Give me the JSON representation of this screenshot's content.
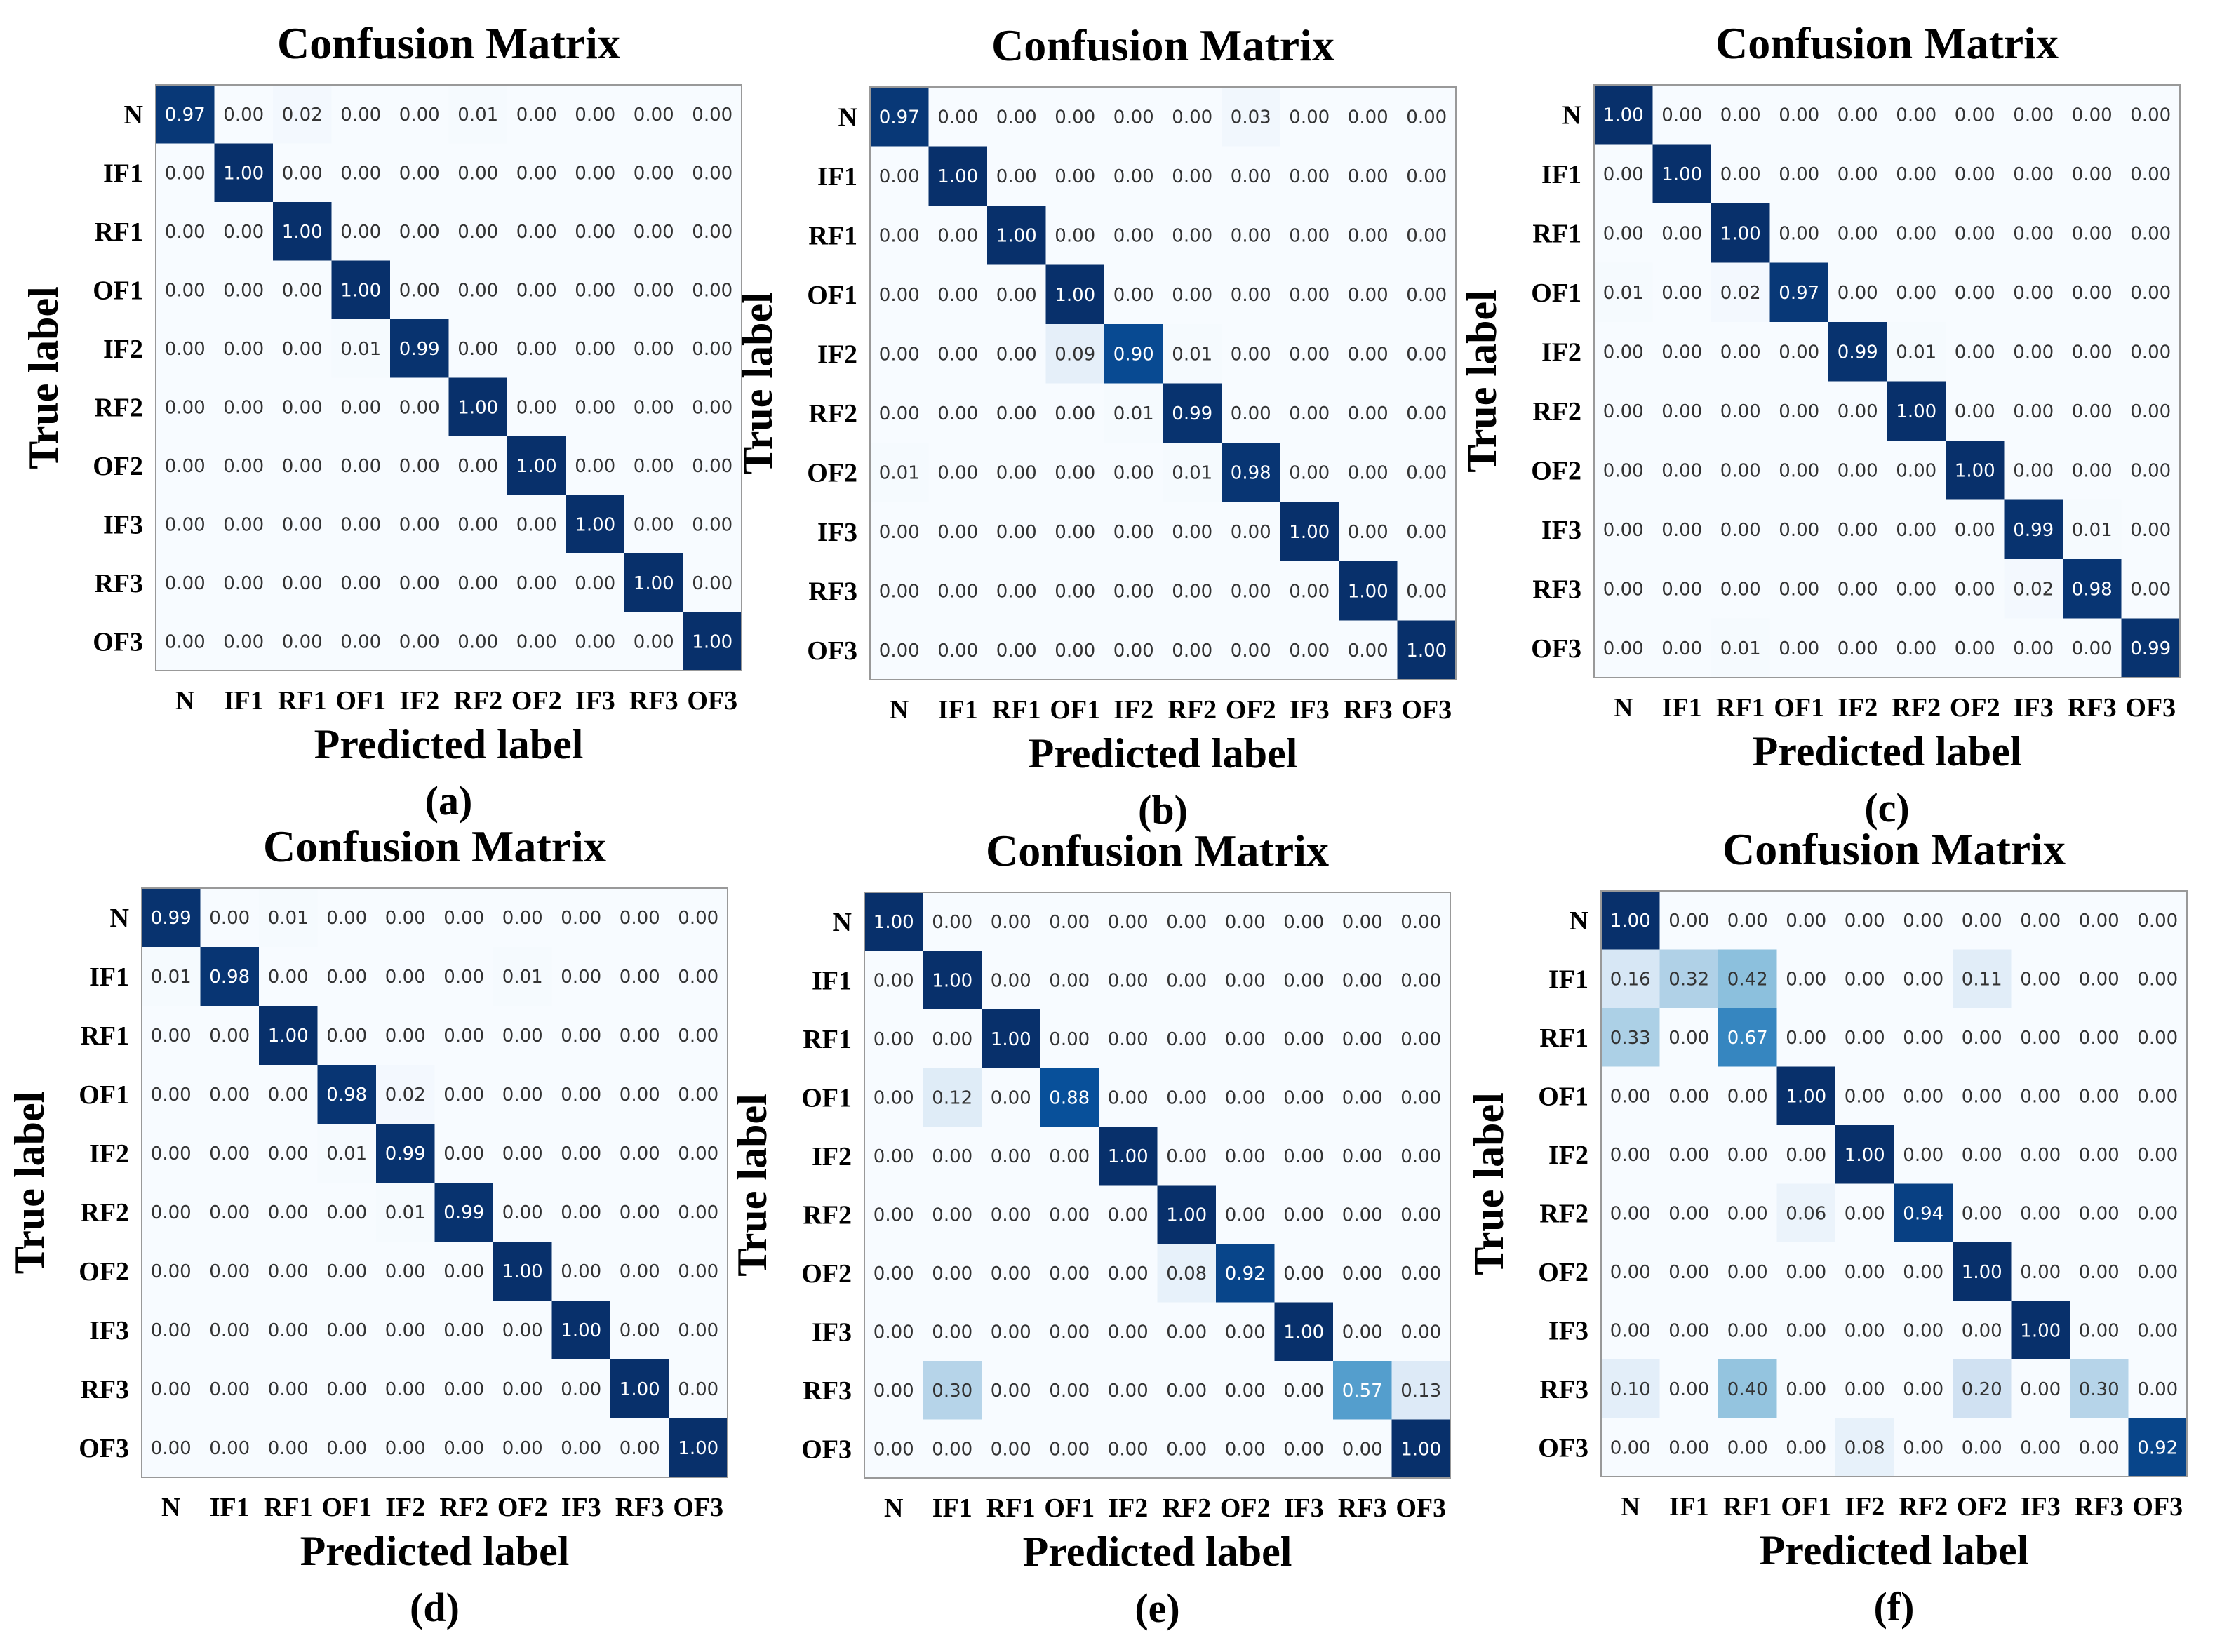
{
  "chart_data": [
    {
      "type": "heatmap",
      "title": "Confusion Matrix",
      "xlabel": "Predicted label",
      "ylabel": "True label",
      "panel_label": "(a)",
      "labels": [
        "N",
        "IF1",
        "RF1",
        "OF1",
        "IF2",
        "RF2",
        "OF2",
        "IF3",
        "RF3",
        "OF3"
      ],
      "values": [
        [
          "0.97",
          "0.00",
          "0.02",
          "0.00",
          "0.00",
          "0.01",
          "0.00",
          "0.00",
          "0.00",
          "0.00"
        ],
        [
          "0.00",
          "1.00",
          "0.00",
          "0.00",
          "0.00",
          "0.00",
          "0.00",
          "0.00",
          "0.00",
          "0.00"
        ],
        [
          "0.00",
          "0.00",
          "1.00",
          "0.00",
          "0.00",
          "0.00",
          "0.00",
          "0.00",
          "0.00",
          "0.00"
        ],
        [
          "0.00",
          "0.00",
          "0.00",
          "1.00",
          "0.00",
          "0.00",
          "0.00",
          "0.00",
          "0.00",
          "0.00"
        ],
        [
          "0.00",
          "0.00",
          "0.00",
          "0.01",
          "0.99",
          "0.00",
          "0.00",
          "0.00",
          "0.00",
          "0.00"
        ],
        [
          "0.00",
          "0.00",
          "0.00",
          "0.00",
          "0.00",
          "1.00",
          "0.00",
          "0.00",
          "0.00",
          "0.00"
        ],
        [
          "0.00",
          "0.00",
          "0.00",
          "0.00",
          "0.00",
          "0.00",
          "1.00",
          "0.00",
          "0.00",
          "0.00"
        ],
        [
          "0.00",
          "0.00",
          "0.00",
          "0.00",
          "0.00",
          "0.00",
          "0.00",
          "1.00",
          "0.00",
          "0.00"
        ],
        [
          "0.00",
          "0.00",
          "0.00",
          "0.00",
          "0.00",
          "0.00",
          "0.00",
          "0.00",
          "1.00",
          "0.00"
        ],
        [
          "0.00",
          "0.00",
          "0.00",
          "0.00",
          "0.00",
          "0.00",
          "0.00",
          "0.00",
          "0.00",
          "1.00"
        ]
      ]
    },
    {
      "type": "heatmap",
      "title": "Confusion Matrix",
      "xlabel": "Predicted label",
      "ylabel": "True label",
      "panel_label": "(b)",
      "labels": [
        "N",
        "IF1",
        "RF1",
        "OF1",
        "IF2",
        "RF2",
        "OF2",
        "IF3",
        "RF3",
        "OF3"
      ],
      "values": [
        [
          "0.97",
          "0.00",
          "0.00",
          "0.00",
          "0.00",
          "0.00",
          "0.03",
          "0.00",
          "0.00",
          "0.00"
        ],
        [
          "0.00",
          "1.00",
          "0.00",
          "0.00",
          "0.00",
          "0.00",
          "0.00",
          "0.00",
          "0.00",
          "0.00"
        ],
        [
          "0.00",
          "0.00",
          "1.00",
          "0.00",
          "0.00",
          "0.00",
          "0.00",
          "0.00",
          "0.00",
          "0.00"
        ],
        [
          "0.00",
          "0.00",
          "0.00",
          "1.00",
          "0.00",
          "0.00",
          "0.00",
          "0.00",
          "0.00",
          "0.00"
        ],
        [
          "0.00",
          "0.00",
          "0.00",
          "0.09",
          "0.90",
          "0.01",
          "0.00",
          "0.00",
          "0.00",
          "0.00"
        ],
        [
          "0.00",
          "0.00",
          "0.00",
          "0.00",
          "0.01",
          "0.99",
          "0.00",
          "0.00",
          "0.00",
          "0.00"
        ],
        [
          "0.01",
          "0.00",
          "0.00",
          "0.00",
          "0.00",
          "0.01",
          "0.98",
          "0.00",
          "0.00",
          "0.00"
        ],
        [
          "0.00",
          "0.00",
          "0.00",
          "0.00",
          "0.00",
          "0.00",
          "0.00",
          "1.00",
          "0.00",
          "0.00"
        ],
        [
          "0.00",
          "0.00",
          "0.00",
          "0.00",
          "0.00",
          "0.00",
          "0.00",
          "0.00",
          "1.00",
          "0.00"
        ],
        [
          "0.00",
          "0.00",
          "0.00",
          "0.00",
          "0.00",
          "0.00",
          "0.00",
          "0.00",
          "0.00",
          "1.00"
        ]
      ]
    },
    {
      "type": "heatmap",
      "title": "Confusion Matrix",
      "xlabel": "Predicted label",
      "ylabel": "True label",
      "panel_label": "(c)",
      "labels": [
        "N",
        "IF1",
        "RF1",
        "OF1",
        "IF2",
        "RF2",
        "OF2",
        "IF3",
        "RF3",
        "OF3"
      ],
      "values": [
        [
          "1.00",
          "0.00",
          "0.00",
          "0.00",
          "0.00",
          "0.00",
          "0.00",
          "0.00",
          "0.00",
          "0.00"
        ],
        [
          "0.00",
          "1.00",
          "0.00",
          "0.00",
          "0.00",
          "0.00",
          "0.00",
          "0.00",
          "0.00",
          "0.00"
        ],
        [
          "0.00",
          "0.00",
          "1.00",
          "0.00",
          "0.00",
          "0.00",
          "0.00",
          "0.00",
          "0.00",
          "0.00"
        ],
        [
          "0.01",
          "0.00",
          "0.02",
          "0.97",
          "0.00",
          "0.00",
          "0.00",
          "0.00",
          "0.00",
          "0.00"
        ],
        [
          "0.00",
          "0.00",
          "0.00",
          "0.00",
          "0.99",
          "0.01",
          "0.00",
          "0.00",
          "0.00",
          "0.00"
        ],
        [
          "0.00",
          "0.00",
          "0.00",
          "0.00",
          "0.00",
          "1.00",
          "0.00",
          "0.00",
          "0.00",
          "0.00"
        ],
        [
          "0.00",
          "0.00",
          "0.00",
          "0.00",
          "0.00",
          "0.00",
          "1.00",
          "0.00",
          "0.00",
          "0.00"
        ],
        [
          "0.00",
          "0.00",
          "0.00",
          "0.00",
          "0.00",
          "0.00",
          "0.00",
          "0.99",
          "0.01",
          "0.00"
        ],
        [
          "0.00",
          "0.00",
          "0.00",
          "0.00",
          "0.00",
          "0.00",
          "0.00",
          "0.02",
          "0.98",
          "0.00"
        ],
        [
          "0.00",
          "0.00",
          "0.01",
          "0.00",
          "0.00",
          "0.00",
          "0.00",
          "0.00",
          "0.00",
          "0.99"
        ]
      ]
    },
    {
      "type": "heatmap",
      "title": "Confusion Matrix",
      "xlabel": "Predicted label",
      "ylabel": "True label",
      "panel_label": "(d)",
      "labels": [
        "N",
        "IF1",
        "RF1",
        "OF1",
        "IF2",
        "RF2",
        "OF2",
        "IF3",
        "RF3",
        "OF3"
      ],
      "values": [
        [
          "0.99",
          "0.00",
          "0.01",
          "0.00",
          "0.00",
          "0.00",
          "0.00",
          "0.00",
          "0.00",
          "0.00"
        ],
        [
          "0.01",
          "0.98",
          "0.00",
          "0.00",
          "0.00",
          "0.00",
          "0.01",
          "0.00",
          "0.00",
          "0.00"
        ],
        [
          "0.00",
          "0.00",
          "1.00",
          "0.00",
          "0.00",
          "0.00",
          "0.00",
          "0.00",
          "0.00",
          "0.00"
        ],
        [
          "0.00",
          "0.00",
          "0.00",
          "0.98",
          "0.02",
          "0.00",
          "0.00",
          "0.00",
          "0.00",
          "0.00"
        ],
        [
          "0.00",
          "0.00",
          "0.00",
          "0.01",
          "0.99",
          "0.00",
          "0.00",
          "0.00",
          "0.00",
          "0.00"
        ],
        [
          "0.00",
          "0.00",
          "0.00",
          "0.00",
          "0.01",
          "0.99",
          "0.00",
          "0.00",
          "0.00",
          "0.00"
        ],
        [
          "0.00",
          "0.00",
          "0.00",
          "0.00",
          "0.00",
          "0.00",
          "1.00",
          "0.00",
          "0.00",
          "0.00"
        ],
        [
          "0.00",
          "0.00",
          "0.00",
          "0.00",
          "0.00",
          "0.00",
          "0.00",
          "1.00",
          "0.00",
          "0.00"
        ],
        [
          "0.00",
          "0.00",
          "0.00",
          "0.00",
          "0.00",
          "0.00",
          "0.00",
          "0.00",
          "1.00",
          "0.00"
        ],
        [
          "0.00",
          "0.00",
          "0.00",
          "0.00",
          "0.00",
          "0.00",
          "0.00",
          "0.00",
          "0.00",
          "1.00"
        ]
      ]
    },
    {
      "type": "heatmap",
      "title": "Confusion Matrix",
      "xlabel": "Predicted label",
      "ylabel": "True label",
      "panel_label": "(e)",
      "labels": [
        "N",
        "IF1",
        "RF1",
        "OF1",
        "IF2",
        "RF2",
        "OF2",
        "IF3",
        "RF3",
        "OF3"
      ],
      "values": [
        [
          "1.00",
          "0.00",
          "0.00",
          "0.00",
          "0.00",
          "0.00",
          "0.00",
          "0.00",
          "0.00",
          "0.00"
        ],
        [
          "0.00",
          "1.00",
          "0.00",
          "0.00",
          "0.00",
          "0.00",
          "0.00",
          "0.00",
          "0.00",
          "0.00"
        ],
        [
          "0.00",
          "0.00",
          "1.00",
          "0.00",
          "0.00",
          "0.00",
          "0.00",
          "0.00",
          "0.00",
          "0.00"
        ],
        [
          "0.00",
          "0.12",
          "0.00",
          "0.88",
          "0.00",
          "0.00",
          "0.00",
          "0.00",
          "0.00",
          "0.00"
        ],
        [
          "0.00",
          "0.00",
          "0.00",
          "0.00",
          "1.00",
          "0.00",
          "0.00",
          "0.00",
          "0.00",
          "0.00"
        ],
        [
          "0.00",
          "0.00",
          "0.00",
          "0.00",
          "0.00",
          "1.00",
          "0.00",
          "0.00",
          "0.00",
          "0.00"
        ],
        [
          "0.00",
          "0.00",
          "0.00",
          "0.00",
          "0.00",
          "0.08",
          "0.92",
          "0.00",
          "0.00",
          "0.00"
        ],
        [
          "0.00",
          "0.00",
          "0.00",
          "0.00",
          "0.00",
          "0.00",
          "0.00",
          "1.00",
          "0.00",
          "0.00"
        ],
        [
          "0.00",
          "0.30",
          "0.00",
          "0.00",
          "0.00",
          "0.00",
          "0.00",
          "0.00",
          "0.57",
          "0.13"
        ],
        [
          "0.00",
          "0.00",
          "0.00",
          "0.00",
          "0.00",
          "0.00",
          "0.00",
          "0.00",
          "0.00",
          "1.00"
        ]
      ]
    },
    {
      "type": "heatmap",
      "title": "Confusion Matrix",
      "xlabel": "Predicted label",
      "ylabel": "True label",
      "panel_label": "(f)",
      "labels": [
        "N",
        "IF1",
        "RF1",
        "OF1",
        "IF2",
        "RF2",
        "OF2",
        "IF3",
        "RF3",
        "OF3"
      ],
      "values": [
        [
          "1.00",
          "0.00",
          "0.00",
          "0.00",
          "0.00",
          "0.00",
          "0.00",
          "0.00",
          "0.00",
          "0.00"
        ],
        [
          "0.16",
          "0.32",
          "0.42",
          "0.00",
          "0.00",
          "0.00",
          "0.11",
          "0.00",
          "0.00",
          "0.00"
        ],
        [
          "0.33",
          "0.00",
          "0.67",
          "0.00",
          "0.00",
          "0.00",
          "0.00",
          "0.00",
          "0.00",
          "0.00"
        ],
        [
          "0.00",
          "0.00",
          "0.00",
          "1.00",
          "0.00",
          "0.00",
          "0.00",
          "0.00",
          "0.00",
          "0.00"
        ],
        [
          "0.00",
          "0.00",
          "0.00",
          "0.00",
          "1.00",
          "0.00",
          "0.00",
          "0.00",
          "0.00",
          "0.00"
        ],
        [
          "0.00",
          "0.00",
          "0.00",
          "0.06",
          "0.00",
          "0.94",
          "0.00",
          "0.00",
          "0.00",
          "0.00"
        ],
        [
          "0.00",
          "0.00",
          "0.00",
          "0.00",
          "0.00",
          "0.00",
          "1.00",
          "0.00",
          "0.00",
          "0.00"
        ],
        [
          "0.00",
          "0.00",
          "0.00",
          "0.00",
          "0.00",
          "0.00",
          "0.00",
          "1.00",
          "0.00",
          "0.00"
        ],
        [
          "0.10",
          "0.00",
          "0.40",
          "0.00",
          "0.00",
          "0.00",
          "0.20",
          "0.00",
          "0.30",
          "0.00"
        ],
        [
          "0.00",
          "0.00",
          "0.00",
          "0.00",
          "0.08",
          "0.00",
          "0.00",
          "0.00",
          "0.00",
          "0.92"
        ]
      ]
    }
  ]
}
